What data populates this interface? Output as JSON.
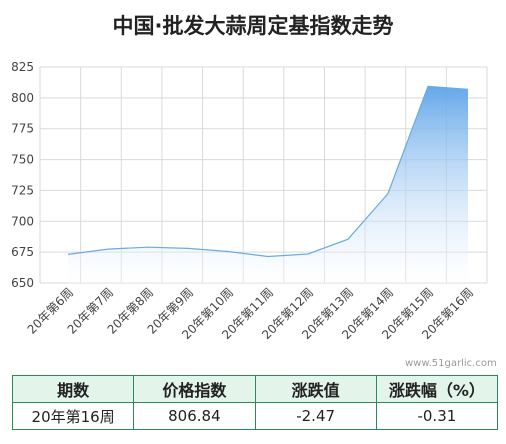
{
  "title": "中国·批发大蒜周定基指数走势",
  "watermark": "www.51garlic.com",
  "colors": {
    "line": "#6aabe6",
    "area_top": "#5da3e8",
    "area_bottom": "#ffffff",
    "grid": "#d9d9d9",
    "table_border": "#2b8a5a",
    "table_header_bg": "#e3f4ea"
  },
  "chart_data": {
    "type": "area",
    "categories": [
      "20年第6周",
      "20年第7周",
      "20年第8周",
      "20年第9周",
      "20年第10周",
      "20年第11周",
      "20年第12周",
      "20年第13周",
      "20年第14周",
      "20年第15周",
      "20年第16周"
    ],
    "values": [
      673.2,
      677.5,
      679.0,
      678.0,
      675.5,
      671.5,
      673.5,
      685.5,
      722.5,
      809.31,
      806.84
    ],
    "ylim": [
      650,
      825
    ],
    "yticks": [
      650,
      675,
      700,
      725,
      750,
      775,
      800,
      825
    ],
    "grid": true
  },
  "table": {
    "headers": [
      "期数",
      "价格指数",
      "涨跌值",
      "涨跌幅（%）"
    ],
    "row": [
      "20年第16周",
      "806.84",
      "-2.47",
      "-0.31"
    ]
  }
}
